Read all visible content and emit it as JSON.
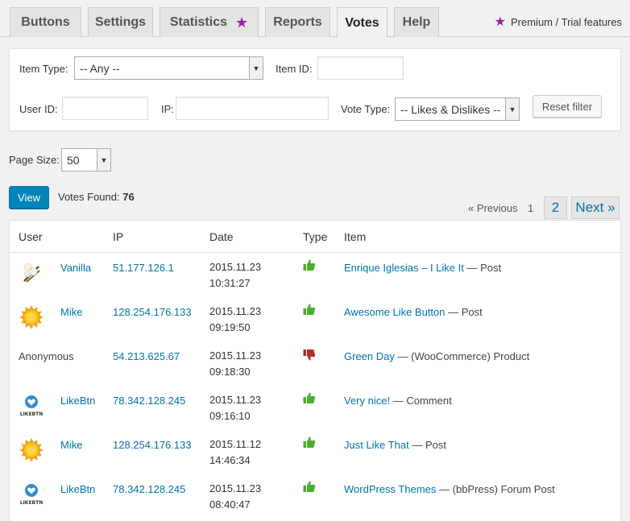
{
  "tabs": [
    {
      "label": "Buttons",
      "premium": false,
      "active": false
    },
    {
      "label": "Settings",
      "premium": false,
      "active": false
    },
    {
      "label": "Statistics",
      "premium": true,
      "active": false
    },
    {
      "label": "Reports",
      "premium": false,
      "active": false
    },
    {
      "label": "Votes",
      "premium": false,
      "active": true
    },
    {
      "label": "Help",
      "premium": false,
      "active": false
    }
  ],
  "premium_note": "Premium / Trial features",
  "star_glyph": "★",
  "filter": {
    "item_type_label": "Item Type:",
    "item_type_value": "-- Any --",
    "item_id_label": "Item ID:",
    "user_id_label": "User ID:",
    "ip_label": "IP:",
    "vote_type_label": "Vote Type:",
    "vote_type_value": "-- Likes & Dislikes --",
    "reset_label": "Reset filter"
  },
  "page_size": {
    "label": "Page Size:",
    "value": "50"
  },
  "view_label": "View",
  "votes_found": {
    "label": "Votes Found:",
    "count": "76"
  },
  "pagination": {
    "previous": "« Previous",
    "page1": "1",
    "page2": "2",
    "next": "Next »"
  },
  "columns": {
    "user": "User",
    "ip": "IP",
    "date": "Date",
    "type": "Type",
    "item": "Item"
  },
  "colors": {
    "like": "#4cae2f",
    "dislike": "#b22b2b",
    "link": "#0073aa",
    "premium": "#9b1fa8"
  },
  "rows": [
    {
      "avatar": "vanilla-avatar",
      "user": "Vanilla",
      "ip": "51.177.126.1",
      "date": "2015.11.23",
      "time": "10:31:27",
      "type": "like",
      "item": "Enrique Iglesias – I Like It",
      "item_suffix": "— Post"
    },
    {
      "avatar": "sun-avatar",
      "user": "Mike",
      "ip": "128.254.176.133",
      "date": "2015.11.23",
      "time": "09:19:50",
      "type": "like",
      "item": "Awesome Like Button",
      "item_suffix": "— Post"
    },
    {
      "avatar": "",
      "user": "Anonymous",
      "ip": "54.213.625.67",
      "date": "2015.11.23",
      "time": "09:18:30",
      "type": "dislike",
      "item": "Green Day",
      "item_suffix": "— (WooCommerce) Product"
    },
    {
      "avatar": "likebtn-avatar",
      "user": "LikeBtn",
      "ip": "78.342.128.245",
      "date": "2015.11.23",
      "time": "09:16:10",
      "type": "like",
      "item": "Very nice!",
      "item_suffix": "— Comment"
    },
    {
      "avatar": "sun-avatar",
      "user": "Mike",
      "ip": "128.254.176.133",
      "date": "2015.11.12",
      "time": "14:46:34",
      "type": "like",
      "item": "Just Like That",
      "item_suffix": "— Post"
    },
    {
      "avatar": "likebtn-avatar",
      "user": "LikeBtn",
      "ip": "78.342.128.245",
      "date": "2015.11.23",
      "time": "08:40:47",
      "type": "like",
      "item": "WordPress Themes",
      "item_suffix": "— (bbPress) Forum Post"
    }
  ],
  "likebtn_logo_text": "LIKEBTN"
}
